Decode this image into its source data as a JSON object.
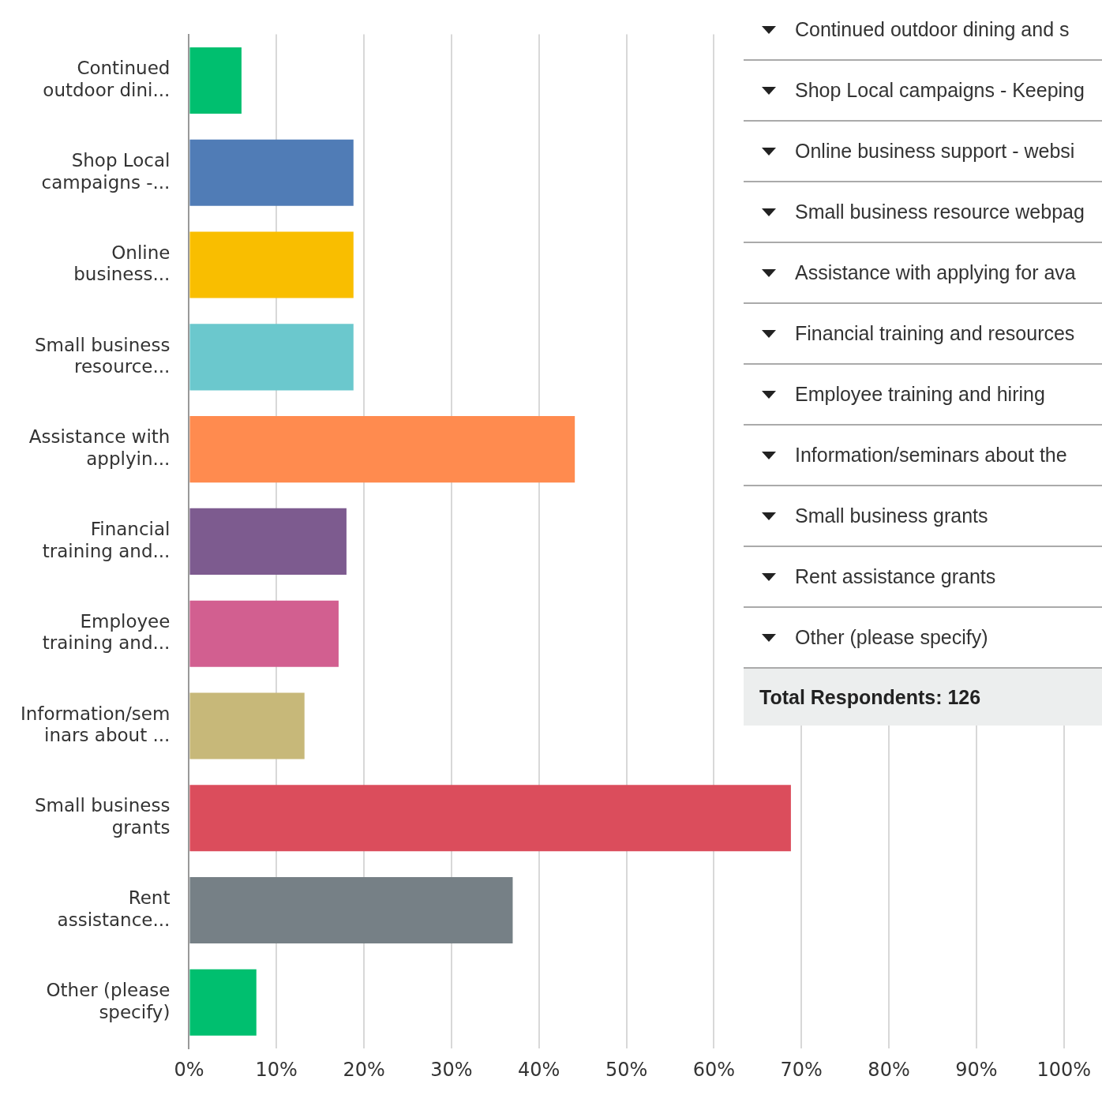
{
  "chart_data": {
    "type": "bar",
    "orientation": "horizontal",
    "categories": [
      "Continued outdoor dini...",
      "Shop Local campaigns -...",
      "Online business...",
      "Small business resource...",
      "Assistance with applyin...",
      "Financial training and...",
      "Employee training and...",
      "Information/seminars about ...",
      "Small business grants",
      "Rent assistance...",
      "Other (please specify)"
    ],
    "values": [
      6.0,
      18.8,
      18.8,
      18.8,
      44.1,
      18.0,
      17.1,
      13.2,
      68.8,
      37.0,
      7.7
    ],
    "colors": [
      "#00bf6f",
      "#507cb6",
      "#f9be00",
      "#6bc8cd",
      "#ff8b4f",
      "#7d5b8f",
      "#d25f90",
      "#c7b879",
      "#db4d5c",
      "#768086",
      "#00bf6f"
    ],
    "xlim": [
      0,
      100
    ],
    "xticks": [
      {
        "value": 0,
        "label": "0%"
      },
      {
        "value": 10,
        "label": "10%"
      },
      {
        "value": 20,
        "label": "20%"
      },
      {
        "value": 30,
        "label": "30%"
      },
      {
        "value": 40,
        "label": "40%"
      },
      {
        "value": 50,
        "label": "50%"
      },
      {
        "value": 60,
        "label": "60%"
      },
      {
        "value": 70,
        "label": "70%"
      },
      {
        "value": 80,
        "label": "80%"
      },
      {
        "value": 90,
        "label": "90%"
      },
      {
        "value": 100,
        "label": "100%"
      }
    ],
    "grid": "x",
    "legend": false,
    "annotations": [
      "Continued outdoor dining and s",
      "Shop Local campaigns - Keeping",
      "Online business support - websi",
      "Small business resource webpag",
      "Assistance with applying for ava",
      "Financial training and resources",
      "Employee training and hiring",
      "Information/seminars about the",
      "Small business grants",
      "Rent assistance grants",
      "Other (please specify)",
      "Total Respondents: 126"
    ]
  }
}
